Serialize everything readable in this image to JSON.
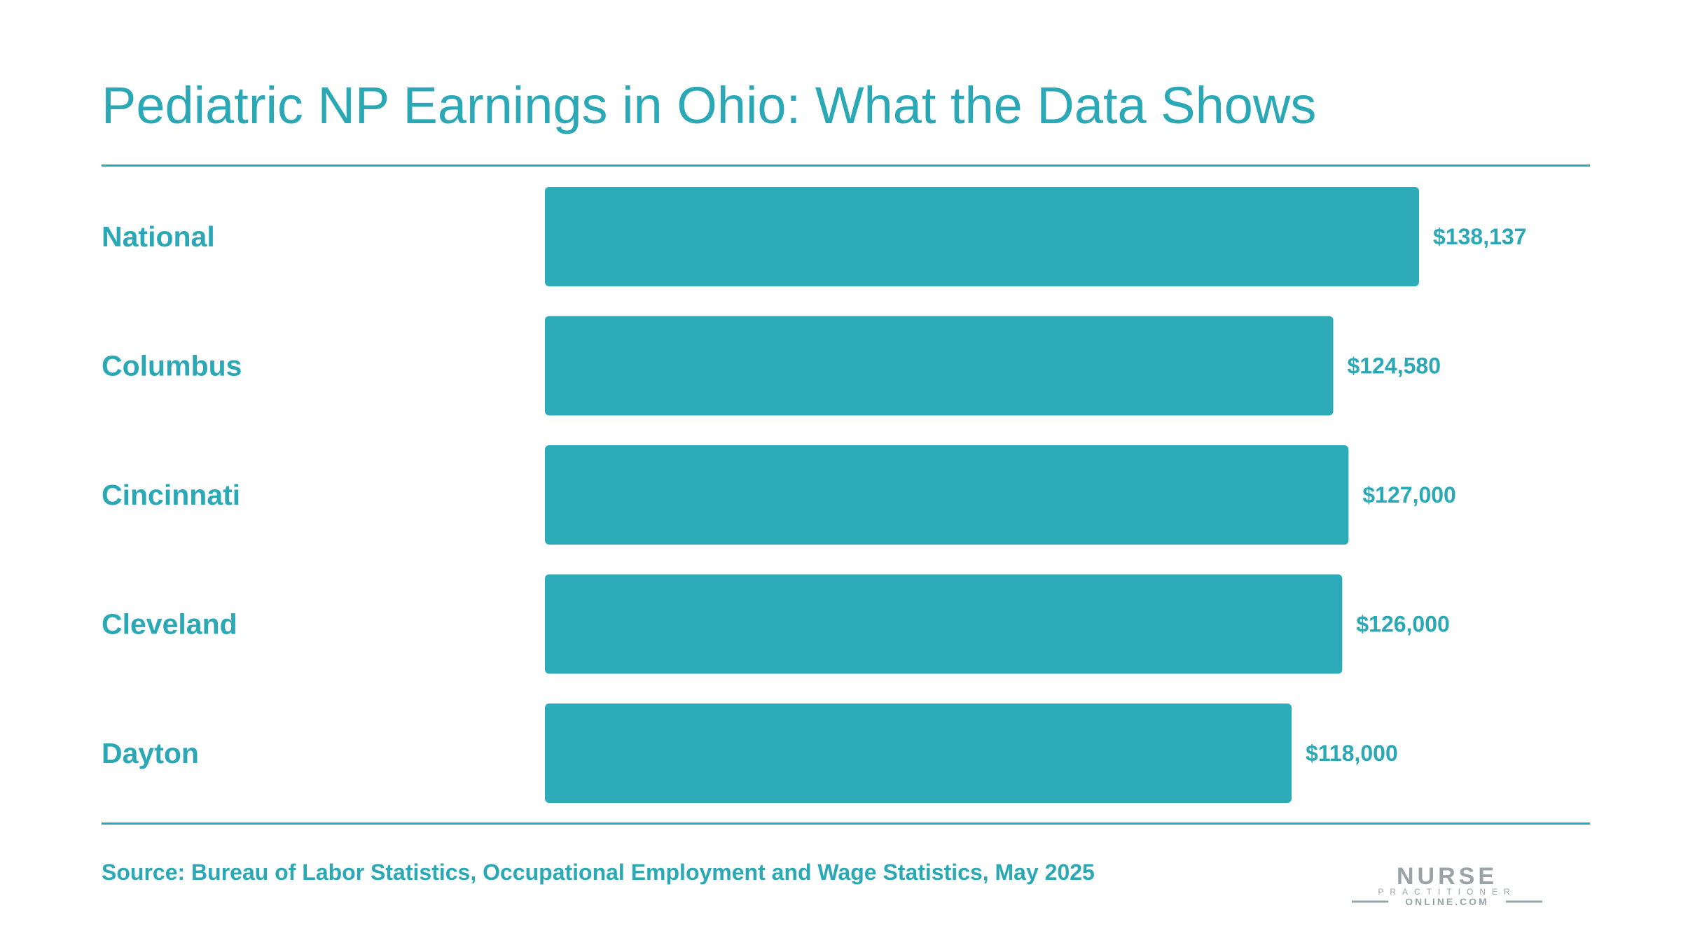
{
  "title": "Pediatric NP Earnings in Ohio: What the Data Shows",
  "source": "Source: Bureau of Labor Statistics, Occupational Employment and Wage Statistics, May 2025",
  "logo": {
    "line1": "NURSE",
    "line2": "PRACTITIONER",
    "line3": "ONLINE.COM"
  },
  "colors": {
    "accent": "#2ba8b6",
    "bar": "#2eabb8",
    "logo": "#9aa3a6"
  },
  "chart_data": {
    "type": "bar",
    "orientation": "horizontal",
    "categories": [
      "National",
      "Columbus",
      "Cincinnati",
      "Cleveland",
      "Dayton"
    ],
    "values": [
      138137,
      124580,
      127000,
      126000,
      118000
    ],
    "value_labels": [
      "$138,137",
      "$124,580",
      "$127,000",
      "$126,000",
      "$118,000"
    ],
    "xlim": [
      0,
      138137
    ],
    "grid": false,
    "legend": "none"
  }
}
